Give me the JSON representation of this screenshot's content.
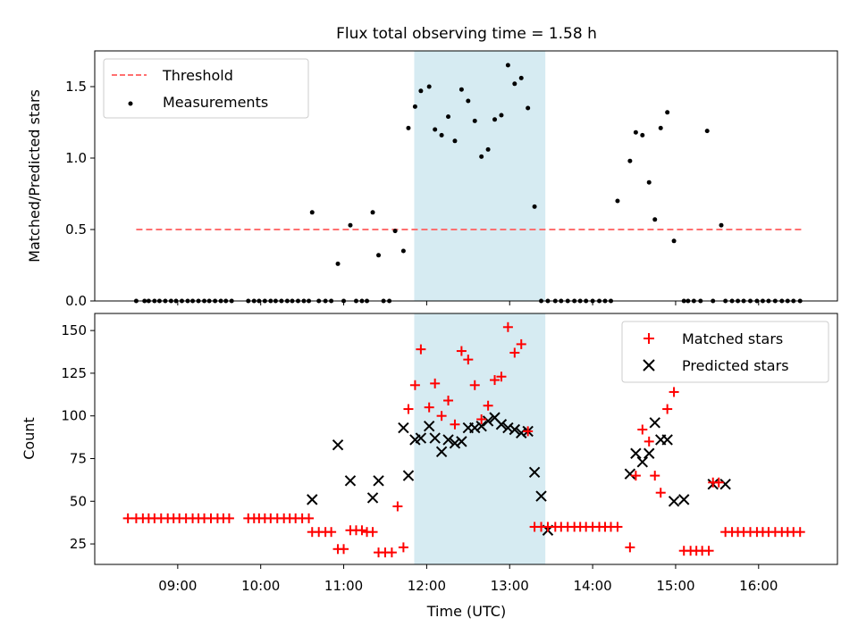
{
  "title": "Flux total observing time = 1.58 h",
  "colors": {
    "threshold": "#ff7070",
    "measure": "#000000",
    "matched": "#ff0000",
    "predicted": "#000000",
    "shade": "#add8e6"
  },
  "chart_data": [
    {
      "type": "scatter",
      "panel": "top",
      "ylabel": "Matched/Predicted stars",
      "xlim": [
        8.0,
        16.95
      ],
      "ylim": [
        0,
        1.75
      ],
      "yticks": [
        0.0,
        0.5,
        1.0,
        1.5
      ],
      "ytick_labels": [
        "0.0",
        "0.5",
        "1.0",
        "1.5"
      ],
      "shaded_interval": [
        11.85,
        13.43
      ],
      "threshold": {
        "label": "Threshold",
        "value": 0.5,
        "x": [
          8.5,
          16.55
        ]
      },
      "legend": {
        "loc": "upper-left",
        "entries": [
          "Threshold",
          "Measurements"
        ]
      },
      "series": [
        {
          "name": "Measurements",
          "x": [
            8.5,
            8.6,
            8.65,
            8.72,
            8.78,
            8.85,
            8.92,
            8.98,
            9.05,
            9.12,
            9.18,
            9.25,
            9.32,
            9.38,
            9.45,
            9.52,
            9.58,
            9.65,
            9.85,
            9.92,
            9.98,
            10.05,
            10.12,
            10.18,
            10.25,
            10.32,
            10.38,
            10.45,
            10.52,
            10.58,
            10.62,
            10.7,
            10.78,
            10.85,
            10.93,
            11.0,
            11.08,
            11.15,
            11.22,
            11.28,
            11.35,
            11.42,
            11.48,
            11.55,
            11.62,
            11.72,
            11.78,
            11.86,
            11.93,
            12.03,
            12.1,
            12.18,
            12.26,
            12.34,
            12.42,
            12.5,
            12.58,
            12.66,
            12.74,
            12.82,
            12.9,
            12.98,
            13.06,
            13.14,
            13.22,
            13.3,
            13.38,
            13.46,
            13.55,
            13.62,
            13.7,
            13.78,
            13.85,
            13.92,
            14.0,
            14.08,
            14.15,
            14.22,
            14.3,
            14.45,
            14.52,
            14.6,
            14.68,
            14.75,
            14.82,
            14.9,
            14.98,
            15.1,
            15.15,
            15.22,
            15.3,
            15.38,
            15.45,
            15.55,
            15.6,
            15.68,
            15.75,
            15.82,
            15.9,
            15.98,
            16.05,
            16.12,
            16.2,
            16.28,
            16.35,
            16.42,
            16.5
          ],
          "y": [
            0,
            0,
            0,
            0,
            0,
            0,
            0,
            0,
            0,
            0,
            0,
            0,
            0,
            0,
            0,
            0,
            0,
            0,
            0,
            0,
            0,
            0,
            0,
            0,
            0,
            0,
            0,
            0,
            0,
            0,
            0.62,
            0,
            0,
            0,
            0.26,
            0,
            0.53,
            0,
            0,
            0,
            0.62,
            0.32,
            0,
            0,
            0.49,
            0.35,
            1.21,
            1.36,
            1.47,
            1.5,
            1.2,
            1.16,
            1.29,
            1.12,
            1.48,
            1.4,
            1.26,
            1.01,
            1.06,
            1.27,
            1.3,
            1.65,
            1.52,
            1.56,
            1.35,
            0.66,
            0,
            0,
            0,
            0,
            0,
            0,
            0,
            0,
            0,
            0,
            0,
            0,
            0.7,
            0.98,
            1.18,
            1.16,
            0.83,
            0.57,
            1.21,
            1.32,
            0.42,
            0,
            0,
            0,
            0,
            1.19,
            0,
            0.53,
            0,
            0,
            0,
            0,
            0,
            0,
            0,
            0,
            0,
            0,
            0,
            0,
            0
          ]
        }
      ]
    },
    {
      "type": "scatter",
      "panel": "bottom",
      "xlabel": "Time (UTC)",
      "ylabel": "Count",
      "xlim": [
        8.0,
        16.95
      ],
      "ylim": [
        13,
        160
      ],
      "yticks": [
        25,
        50,
        75,
        100,
        125,
        150
      ],
      "ytick_labels": [
        "25",
        "50",
        "75",
        "100",
        "125",
        "150"
      ],
      "xticks": [
        9,
        10,
        11,
        12,
        13,
        14,
        15,
        16
      ],
      "xtick_labels": [
        "09:00",
        "10:00",
        "11:00",
        "12:00",
        "13:00",
        "14:00",
        "15:00",
        "16:00"
      ],
      "shaded_interval": [
        11.85,
        13.43
      ],
      "legend": {
        "loc": "upper-right",
        "entries": [
          "Matched stars",
          "Predicted stars"
        ]
      },
      "series": [
        {
          "name": "Matched stars",
          "marker": "+",
          "x": [
            8.4,
            8.5,
            8.58,
            8.65,
            8.72,
            8.8,
            8.88,
            8.95,
            9.02,
            9.1,
            9.18,
            9.25,
            9.32,
            9.4,
            9.48,
            9.55,
            9.62,
            9.85,
            9.92,
            9.98,
            10.05,
            10.12,
            10.2,
            10.28,
            10.35,
            10.42,
            10.5,
            10.58,
            10.62,
            10.7,
            10.78,
            10.85,
            10.93,
            11.0,
            11.08,
            11.15,
            11.22,
            11.28,
            11.35,
            11.42,
            11.5,
            11.58,
            11.65,
            11.72,
            11.78,
            11.86,
            11.93,
            12.03,
            12.1,
            12.18,
            12.26,
            12.34,
            12.42,
            12.5,
            12.58,
            12.66,
            12.74,
            12.82,
            12.9,
            12.98,
            13.06,
            13.14,
            13.22,
            13.3,
            13.38,
            13.46,
            13.55,
            13.62,
            13.7,
            13.78,
            13.85,
            13.92,
            14.0,
            14.08,
            14.15,
            14.22,
            14.3,
            14.45,
            14.52,
            14.6,
            14.68,
            14.75,
            14.82,
            14.9,
            14.98,
            15.1,
            15.18,
            15.25,
            15.32,
            15.4,
            15.45,
            15.52,
            15.6,
            15.68,
            15.75,
            15.82,
            15.9,
            15.98,
            16.05,
            16.12,
            16.2,
            16.28,
            16.35,
            16.42,
            16.5
          ],
          "y": [
            40,
            40,
            40,
            40,
            40,
            40,
            40,
            40,
            40,
            40,
            40,
            40,
            40,
            40,
            40,
            40,
            40,
            40,
            40,
            40,
            40,
            40,
            40,
            40,
            40,
            40,
            40,
            40,
            32,
            32,
            32,
            32,
            22,
            22,
            33,
            33,
            33,
            32,
            32,
            20,
            20,
            20,
            47,
            23,
            104,
            118,
            139,
            105,
            119,
            100,
            109,
            95,
            138,
            133,
            118,
            98,
            106,
            121,
            123,
            152,
            137,
            142,
            91,
            35,
            35,
            35,
            35,
            35,
            35,
            35,
            35,
            35,
            35,
            35,
            35,
            35,
            35,
            23,
            65,
            92,
            85,
            65,
            55,
            104,
            114,
            21,
            21,
            21,
            21,
            21,
            61,
            61,
            32,
            32,
            32,
            32,
            32,
            32,
            32,
            32,
            32,
            32,
            32,
            32,
            32
          ]
        },
        {
          "name": "Predicted stars",
          "marker": "x",
          "x": [
            10.62,
            10.93,
            11.08,
            11.35,
            11.42,
            11.72,
            11.78,
            11.86,
            11.93,
            12.03,
            12.1,
            12.18,
            12.26,
            12.34,
            12.42,
            12.5,
            12.58,
            12.66,
            12.74,
            12.82,
            12.9,
            12.98,
            13.06,
            13.14,
            13.22,
            13.3,
            13.38,
            13.46,
            14.45,
            14.52,
            14.6,
            14.68,
            14.75,
            14.82,
            14.9,
            14.98,
            15.1,
            15.45,
            15.6
          ],
          "y": [
            51,
            83,
            62,
            52,
            62,
            93,
            65,
            86,
            87,
            94,
            87,
            79,
            86,
            84,
            85,
            93,
            93,
            94,
            97,
            99,
            95,
            93,
            92,
            90,
            91,
            67,
            53,
            33,
            66,
            78,
            73,
            78,
            96,
            86,
            86,
            50,
            51,
            60,
            60
          ]
        }
      ]
    }
  ]
}
